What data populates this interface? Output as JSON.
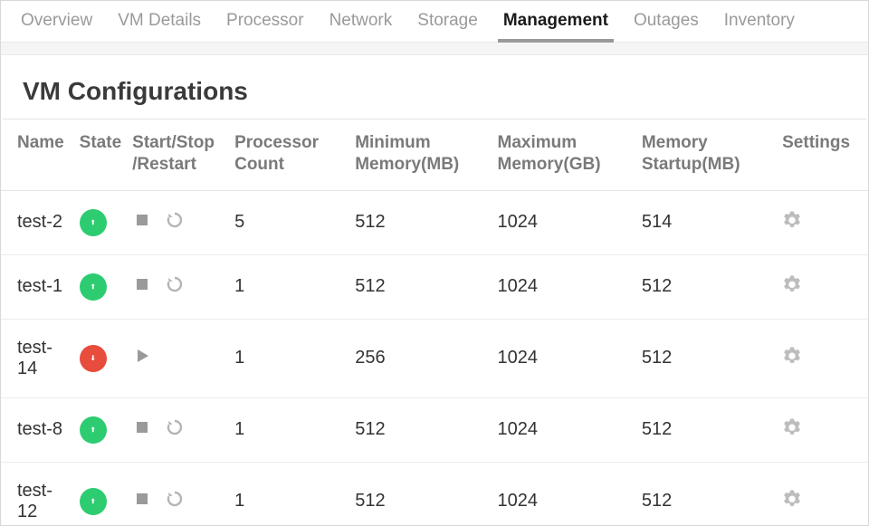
{
  "tabs": [
    {
      "label": "Overview",
      "active": false
    },
    {
      "label": "VM Details",
      "active": false
    },
    {
      "label": "Processor",
      "active": false
    },
    {
      "label": "Network",
      "active": false
    },
    {
      "label": "Storage",
      "active": false
    },
    {
      "label": "Management",
      "active": true
    },
    {
      "label": "Outages",
      "active": false
    },
    {
      "label": "Inventory",
      "active": false
    }
  ],
  "section_title": "VM Configurations",
  "columns": {
    "name": "Name",
    "state": "State",
    "actions": "Start/Stop/Restart",
    "processor": "Processor Count",
    "min_mem": "Minimum Memory(MB)",
    "max_mem": "Maximum Memory(GB)",
    "mem_startup": "Memory Startup(MB)",
    "settings": "Settings"
  },
  "state_colors": {
    "up": "#2ecc71",
    "down": "#e74c3c"
  },
  "icon_color": "#9a9a9a",
  "gear_color": "#bdbdbd",
  "rows": [
    {
      "name": "test-2",
      "state": "up",
      "actions": [
        "stop",
        "restart"
      ],
      "processor": "5",
      "min_mem": "512",
      "max_mem": "1024",
      "mem_startup": "514"
    },
    {
      "name": "test-1",
      "state": "up",
      "actions": [
        "stop",
        "restart"
      ],
      "processor": "1",
      "min_mem": "512",
      "max_mem": "1024",
      "mem_startup": "512"
    },
    {
      "name": "test-14",
      "state": "down",
      "actions": [
        "start"
      ],
      "processor": "1",
      "min_mem": "256",
      "max_mem": "1024",
      "mem_startup": "512"
    },
    {
      "name": "test-8",
      "state": "up",
      "actions": [
        "stop",
        "restart"
      ],
      "processor": "1",
      "min_mem": "512",
      "max_mem": "1024",
      "mem_startup": "512"
    },
    {
      "name": "test-12",
      "state": "up",
      "actions": [
        "stop",
        "restart"
      ],
      "processor": "1",
      "min_mem": "512",
      "max_mem": "1024",
      "mem_startup": "512"
    }
  ]
}
